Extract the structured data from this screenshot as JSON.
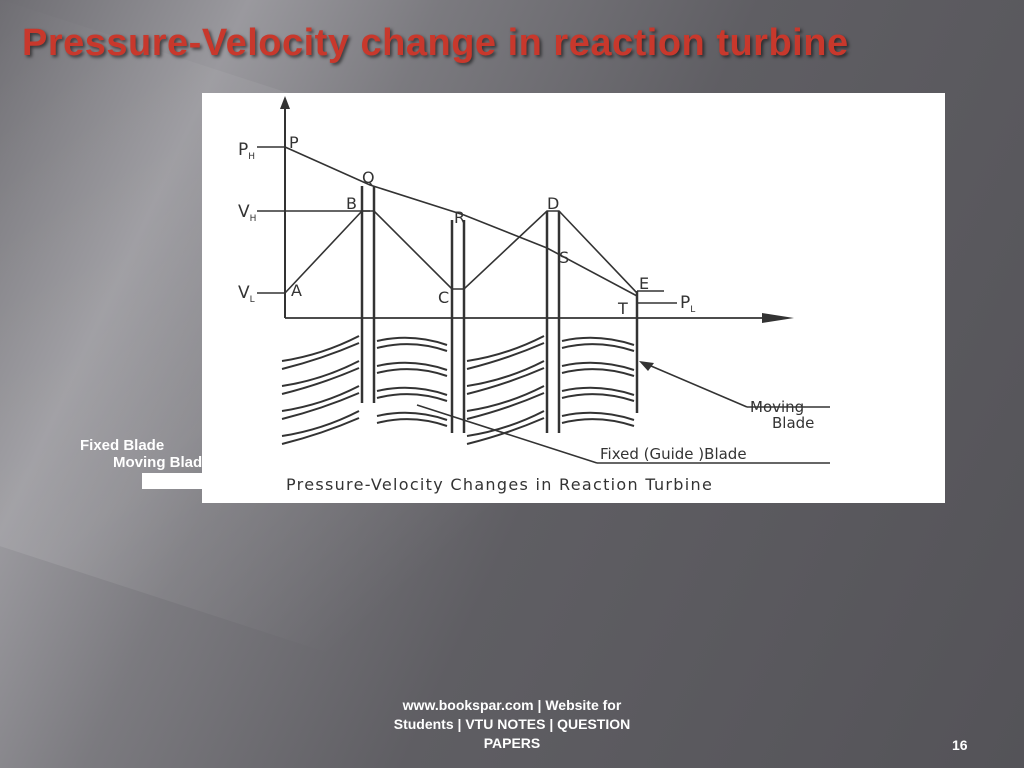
{
  "slide": {
    "title": "Pressure-Velocity change in reaction turbine",
    "page_number": "16",
    "footer": {
      "line1": "www.bookspar.com | Website for",
      "line2": "Students | VTU NOTES | QUESTION",
      "line3": "PAPERS"
    },
    "overlay_labels": {
      "fixed_blade": "Fixed Blade",
      "moving_blade": "Moving Blade"
    }
  },
  "diagram": {
    "caption": "Pressure-Velocity Changes in Reaction Turbine",
    "axis_labels": {
      "ph": "P",
      "ph_sub": "H",
      "vh": "V",
      "vh_sub": "H",
      "vl": "V",
      "vl_sub": "L",
      "pl": "P",
      "pl_sub": "L"
    },
    "point_labels": {
      "P": "P",
      "Q": "Q",
      "B": "B",
      "R": "R",
      "D": "D",
      "S": "S",
      "A": "A",
      "C": "C",
      "E": "E",
      "T": "T"
    },
    "callouts": {
      "moving_line1": "Moving",
      "moving_line2": "Blade",
      "fixed": "Fixed (Guide )Blade"
    }
  }
}
